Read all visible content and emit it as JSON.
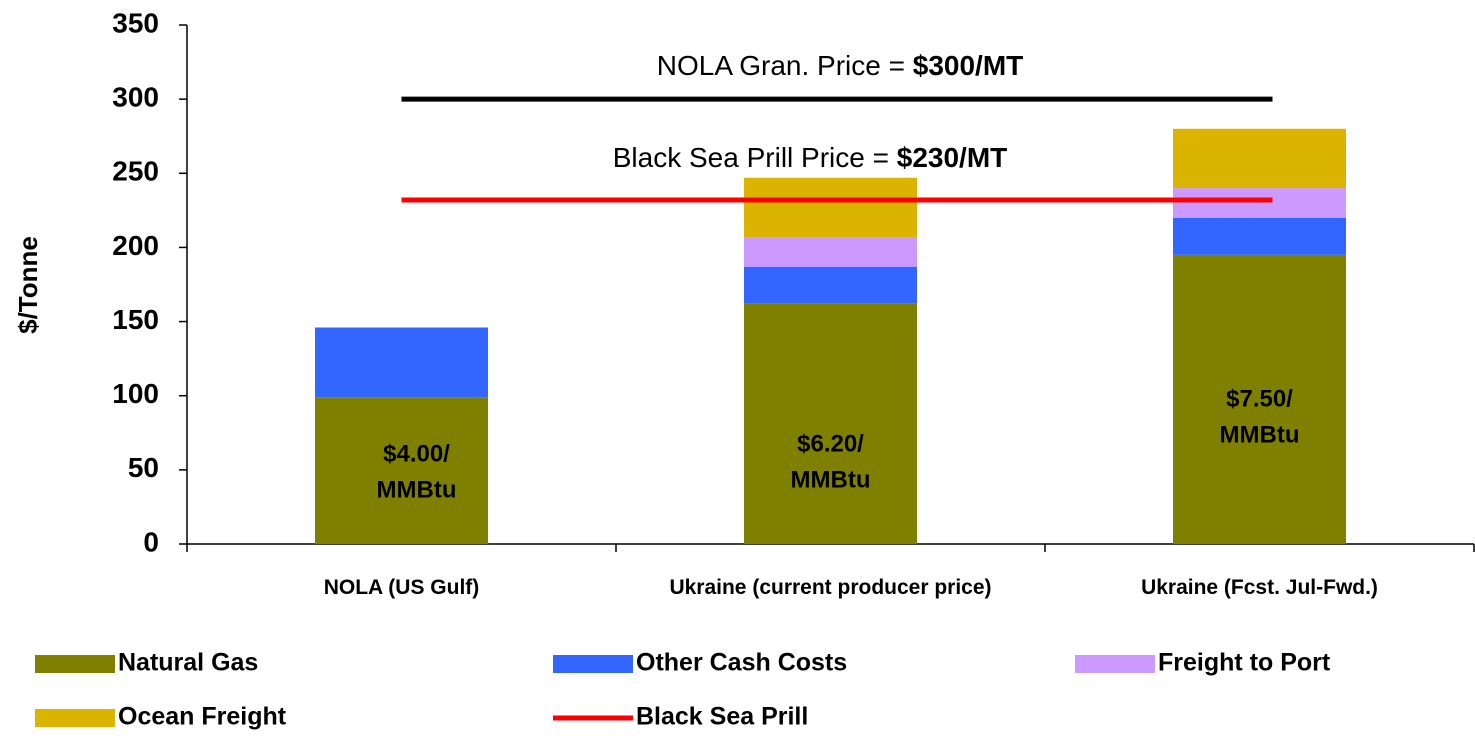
{
  "chart_data": {
    "type": "stacked_bar",
    "y_axis_label": "$/Tonne",
    "categories": [
      "NOLA (US Gulf)",
      "Ukraine (current producer price)",
      "Ukraine (Fcst. Jul-Fwd.)"
    ],
    "series": [
      {
        "name": "Natural Gas",
        "color": "#808000",
        "values": [
          99,
          162,
          195
        ]
      },
      {
        "name": "Other Cash Costs",
        "color": "#3366ff",
        "values": [
          47,
          25,
          25
        ]
      },
      {
        "name": "Freight to Port",
        "color": "#cc99ff",
        "values": [
          0,
          20,
          20
        ]
      },
      {
        "name": "Ocean Freight",
        "color": "#dbb400",
        "values": [
          0,
          40,
          40
        ]
      },
      {
        "name": "Black Sea Prill",
        "type": "line",
        "color": "#ff0000",
        "values": [
          232,
          232,
          232
        ]
      }
    ],
    "reference_lines": [
      {
        "value": 300,
        "color": "#000000"
      }
    ],
    "bar_notes": [
      [
        "$4.00/",
        "MMBtu"
      ],
      [
        "$6.20/",
        "MMBtu"
      ],
      [
        "$7.50/",
        "MMBtu"
      ]
    ],
    "annotations": [
      {
        "text": "NOLA Gran. Price = ",
        "bold_text": "$300/MT"
      },
      {
        "text": "Black Sea Prill Price = ",
        "bold_text": "$230/MT"
      }
    ],
    "ylim": [
      0,
      350
    ],
    "yticks": [
      0,
      50,
      100,
      150,
      200,
      250,
      300,
      350
    ],
    "grid": false
  }
}
